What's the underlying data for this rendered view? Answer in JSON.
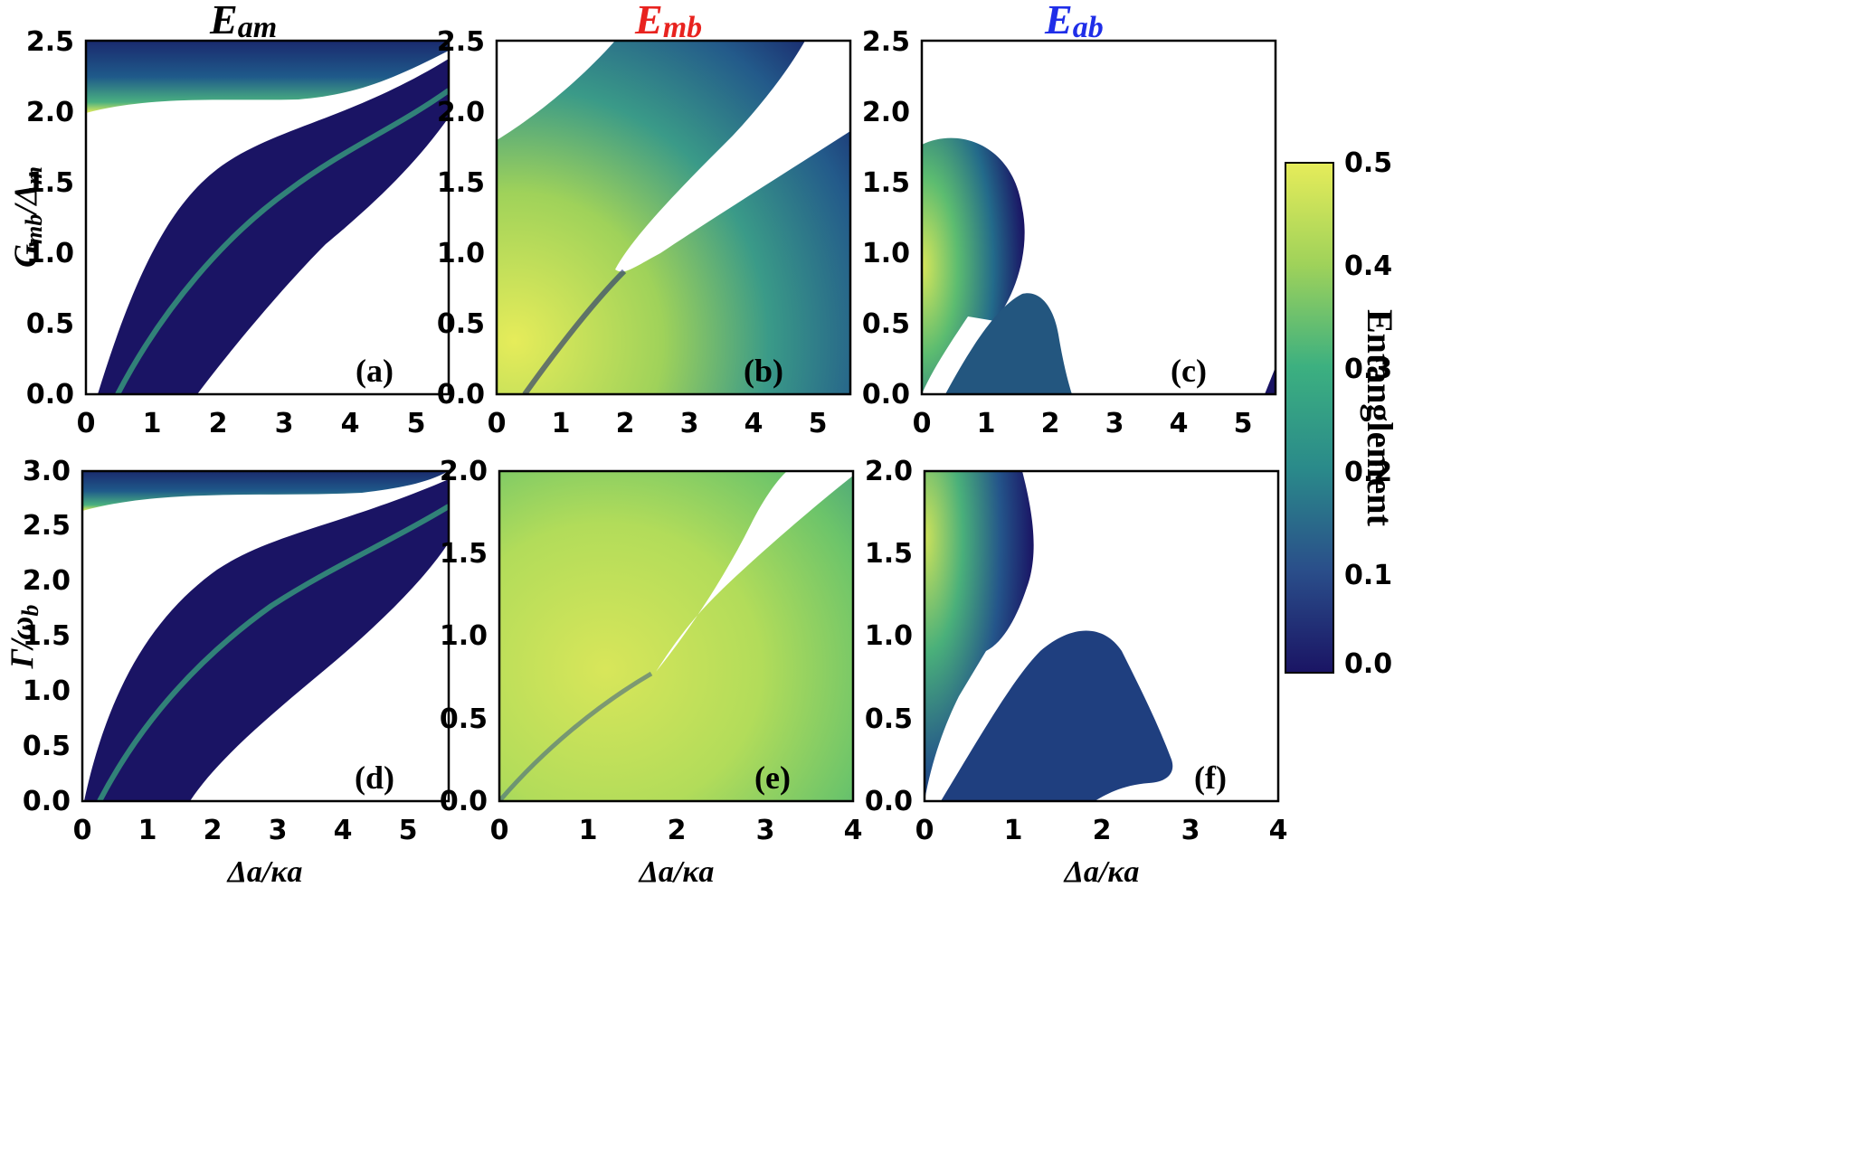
{
  "colorbar": {
    "label": "Entanglement",
    "ticks": [
      "0.5",
      "0.4",
      "0.3",
      "0.2",
      "0.1",
      "0.0"
    ],
    "range": [
      0,
      0.5
    ],
    "colors": [
      "#1a1464",
      "#2a4e8a",
      "#2a8a8a",
      "#3cb080",
      "#9fd25a",
      "#e6ec5a"
    ]
  },
  "chart_data": [
    {
      "type": "heatmap",
      "title_main": "E",
      "title_sub": "am",
      "title_color": "#000000",
      "panel_label": "(a)",
      "ylabel_main": "G",
      "ylabel_sub": "mb",
      "ylabel_rest": "/Δ",
      "ylabel_sub2": "m",
      "xlabel": "",
      "xlim": [
        0,
        5.5
      ],
      "ylim": [
        0,
        2.5
      ],
      "xticks": [
        "0",
        "1",
        "2",
        "3",
        "4",
        "5"
      ],
      "yticks": [
        "0.0",
        "0.5",
        "1.0",
        "1.5",
        "2.0",
        "2.5"
      ]
    },
    {
      "type": "heatmap",
      "title_main": "E",
      "title_sub": "mb",
      "title_color": "#e8231f",
      "panel_label": "(b)",
      "xlim": [
        0,
        5.5
      ],
      "ylim": [
        0,
        2.5
      ],
      "xticks": [
        "0",
        "1",
        "2",
        "3",
        "4",
        "5"
      ],
      "yticks": [
        "0.0",
        "0.5",
        "1.0",
        "1.5",
        "2.0",
        "2.5"
      ]
    },
    {
      "type": "heatmap",
      "title_main": "E",
      "title_sub": "ab",
      "title_color": "#1f2ee8",
      "panel_label": "(c)",
      "xlim": [
        0,
        5.5
      ],
      "ylim": [
        0,
        2.5
      ],
      "xticks": [
        "0",
        "1",
        "2",
        "3",
        "4",
        "5"
      ],
      "yticks": [
        "0.0",
        "0.5",
        "1.0",
        "1.5",
        "2.0",
        "2.5"
      ]
    },
    {
      "type": "heatmap",
      "panel_label": "(d)",
      "ylabel_main": "Γ",
      "ylabel_rest": "/ω",
      "ylabel_sub2": "b",
      "xlabel": "Δa/κa",
      "xlim": [
        0,
        5.5
      ],
      "ylim": [
        0,
        3.0
      ],
      "xticks": [
        "0",
        "1",
        "2",
        "3",
        "4",
        "5"
      ],
      "yticks": [
        "0.0",
        "0.5",
        "1.0",
        "1.5",
        "2.0",
        "2.5",
        "3.0"
      ]
    },
    {
      "type": "heatmap",
      "panel_label": "(e)",
      "xlabel": "Δa/κa",
      "xlim": [
        0,
        4
      ],
      "ylim": [
        0,
        2.0
      ],
      "xticks": [
        "0",
        "1",
        "2",
        "3",
        "4"
      ],
      "yticks": [
        "0.0",
        "0.5",
        "1.0",
        "1.5",
        "2.0"
      ]
    },
    {
      "type": "heatmap",
      "panel_label": "(f)",
      "xlabel": "Δa/κa",
      "xlim": [
        0,
        4
      ],
      "ylim": [
        0,
        2.0
      ],
      "xticks": [
        "0",
        "1",
        "2",
        "3",
        "4"
      ],
      "yticks": [
        "0.0",
        "0.5",
        "1.0",
        "1.5",
        "2.0"
      ]
    }
  ]
}
